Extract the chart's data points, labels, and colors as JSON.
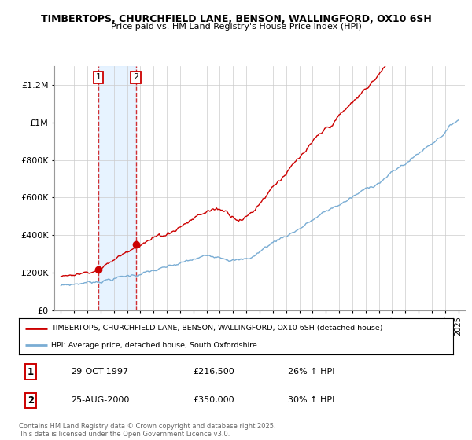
{
  "title": "TIMBERTOPS, CHURCHFIELD LANE, BENSON, WALLINGFORD, OX10 6SH",
  "subtitle": "Price paid vs. HM Land Registry's House Price Index (HPI)",
  "legend_label_red": "TIMBERTOPS, CHURCHFIELD LANE, BENSON, WALLINGFORD, OX10 6SH (detached house)",
  "legend_label_blue": "HPI: Average price, detached house, South Oxfordshire",
  "footnote": "Contains HM Land Registry data © Crown copyright and database right 2025.\nThis data is licensed under the Open Government Licence v3.0.",
  "sale1_label": "1",
  "sale1_date": "29-OCT-1997",
  "sale1_price": "£216,500",
  "sale1_hpi": "26% ↑ HPI",
  "sale2_label": "2",
  "sale2_date": "25-AUG-2000",
  "sale2_price": "£350,000",
  "sale2_hpi": "30% ↑ HPI",
  "red_color": "#cc0000",
  "blue_color": "#7aadd4",
  "vline_color": "#cc0000",
  "shade_color": "#ddeeff",
  "ylim": [
    0,
    1300000
  ],
  "yticks": [
    0,
    200000,
    400000,
    600000,
    800000,
    1000000,
    1200000
  ],
  "ylabel_map": {
    "0": "£0",
    "200000": "£200K",
    "400000": "£400K",
    "600000": "£600K",
    "800000": "£800K",
    "1000000": "£1M",
    "1200000": "£1.2M"
  },
  "sale1_x": 1997.83,
  "sale1_y": 216500,
  "sale2_x": 2000.65,
  "sale2_y": 350000,
  "xmin": 1994.5,
  "xmax": 2025.5
}
